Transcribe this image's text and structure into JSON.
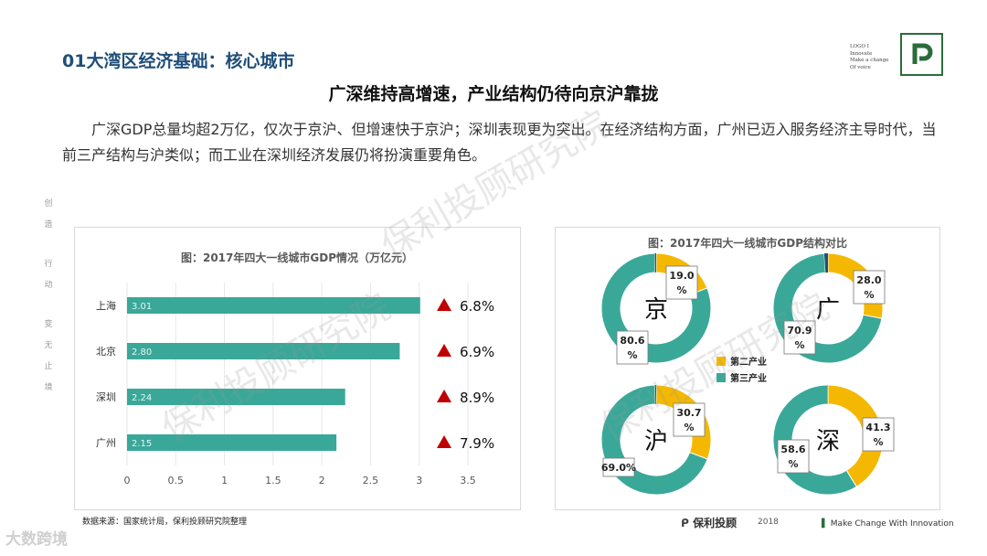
{
  "header": {
    "section_title": "01大湾区经济基础：核心城市",
    "logo_lines": [
      "LOGO I",
      "Innovate",
      "Make a change",
      "Of voice"
    ],
    "headline": "广深维持高增速，产业结构仍待向京沪靠拢",
    "paragraph": "广深GDP总量均超2万亿，仅次于京沪、但增速快于京沪；深圳表现更为突出。在经济结构方面，广州已迈入服务经济主导时代，当前三产结构与沪类似；而工业在深圳经济发展仍将扮演重要角色。"
  },
  "sidebar": {
    "chars": [
      "创",
      "造",
      "行",
      "动",
      "变",
      "无",
      "止",
      "境"
    ]
  },
  "watermark": "保利投顾研究院",
  "chart_data": [
    {
      "type": "bar",
      "orientation": "horizontal",
      "title": "图：2017年四大一线城市GDP情况（万亿元）",
      "categories": [
        "上海",
        "北京",
        "深圳",
        "广州"
      ],
      "values": [
        3.01,
        2.8,
        2.24,
        2.15
      ],
      "value_labels": [
        "3.01",
        "2.80",
        "2.24",
        "2.15"
      ],
      "growth_labels": [
        "6.8%",
        "6.9%",
        "8.9%",
        "7.9%"
      ],
      "xlim": [
        0,
        3.5
      ],
      "xticks": [
        "0",
        "0.5",
        "1",
        "1.5",
        "2",
        "2.5",
        "3",
        "3.5"
      ],
      "xtick_values": [
        0,
        0.5,
        1,
        1.5,
        2,
        2.5,
        3,
        3.5
      ],
      "bar_color": "#3aa899",
      "marker_color": "#c00000",
      "grid": true
    },
    {
      "type": "pie",
      "variant": "donut",
      "title": "图：2017年四大一线城市GDP结构对比",
      "legend": [
        "第二产业",
        "第三产业"
      ],
      "legend_placement": "center",
      "colors": {
        "secondary": "#f5b800",
        "tertiary": "#3aa899",
        "primary": "#1f4e79"
      },
      "donuts": [
        {
          "city": "京",
          "secondary": 19.0,
          "tertiary": 80.6,
          "secondary_label": "19.0 %",
          "tertiary_label": "80.6 %"
        },
        {
          "city": "广",
          "secondary": 28.0,
          "tertiary": 70.9,
          "secondary_label": "28.0 %",
          "tertiary_label": "70.9 %"
        },
        {
          "city": "沪",
          "secondary": 30.7,
          "tertiary": 69.0,
          "secondary_label": "30.7 %",
          "tertiary_label": "69.0%"
        },
        {
          "city": "深",
          "secondary": 41.3,
          "tertiary": 58.6,
          "secondary_label": "41.3 %",
          "tertiary_label": "58.6 %"
        }
      ]
    }
  ],
  "footer": {
    "source": "数据来源：国家统计局，保利投顾研究院整理",
    "brand": "保利投顾",
    "year": "2018",
    "slogan": "Make Change With Innovation",
    "corner": "大数跨境"
  }
}
